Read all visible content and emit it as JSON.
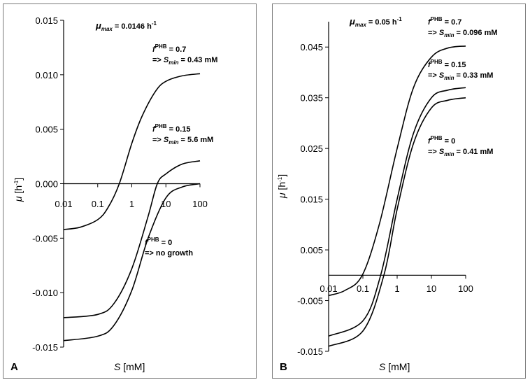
{
  "chart_data": [
    {
      "panel_label": "A",
      "type": "line",
      "xscale": "log",
      "x_ticks": [
        "0.01",
        "0.1",
        "1",
        "10",
        "100"
      ],
      "x_tick_values": [
        0.01,
        0.1,
        1,
        10,
        100
      ],
      "y_ticks": [
        "0.015",
        "0.010",
        "0.005",
        "0.000",
        "-0.005",
        "-0.010",
        "-0.015"
      ],
      "y_tick_values": [
        0.015,
        0.01,
        0.005,
        0.0,
        -0.005,
        -0.01,
        -0.015
      ],
      "ylim": [
        -0.015,
        0.015
      ],
      "xlim": [
        0.01,
        100
      ],
      "xlabel_main": "S",
      "xlabel_unit": " [mM]",
      "ylabel_main": "μ",
      "ylabel_unit": " [h",
      "ylabel_exp": "-1",
      "ylabel_close": "]",
      "title_main": "μ",
      "title_sub": "max",
      "title_rest": " = 0.0146 h",
      "title_exp": "-1",
      "series": [
        {
          "ann_f": "f",
          "ann_sup": "PHB",
          "ann_val": " = 0.7",
          "ann_line2": "=> ",
          "ann_s": "S",
          "ann_sub": "min",
          "ann_rest": " = 0.43 mM",
          "x": [
            0.01,
            0.03,
            0.1,
            0.2,
            0.43,
            1,
            2,
            5,
            10,
            30,
            100
          ],
          "y": [
            -0.0042,
            -0.004,
            -0.0033,
            -0.0022,
            0.0,
            0.0037,
            0.0062,
            0.0085,
            0.0094,
            0.0099,
            0.0101
          ]
        },
        {
          "ann_f": "f",
          "ann_sup": "PHB",
          "ann_val": " = 0.15",
          "ann_line2": "=> ",
          "ann_s": "S",
          "ann_sub": "min",
          "ann_rest": " = 5.6 mM",
          "x": [
            0.01,
            0.1,
            0.3,
            1,
            3,
            5.6,
            10,
            30,
            100
          ],
          "y": [
            -0.0123,
            -0.012,
            -0.011,
            -0.0078,
            -0.003,
            0.0,
            0.0009,
            0.0018,
            0.0021
          ]
        },
        {
          "ann_f": "f",
          "ann_sup": "PHB",
          "ann_val": " = 0",
          "ann_line2": "=> no growth",
          "ann_s": "",
          "ann_sub": "",
          "ann_rest": "",
          "x": [
            0.01,
            0.1,
            0.3,
            1,
            3,
            10,
            30,
            100
          ],
          "y": [
            -0.0144,
            -0.014,
            -0.013,
            -0.0098,
            -0.005,
            -0.0013,
            -0.0003,
            0.0
          ]
        }
      ]
    },
    {
      "panel_label": "B",
      "type": "line",
      "xscale": "log",
      "x_ticks": [
        "0.01",
        "0.1",
        "1",
        "10",
        "100"
      ],
      "x_tick_values": [
        0.01,
        0.1,
        1,
        10,
        100
      ],
      "y_ticks": [
        "0.045",
        "0.035",
        "0.025",
        "0.015",
        "0.005",
        "-0.005",
        "-0.015"
      ],
      "y_tick_values": [
        0.045,
        0.035,
        0.025,
        0.015,
        0.005,
        -0.005,
        -0.015
      ],
      "ylim": [
        -0.015,
        0.05
      ],
      "xlim": [
        0.01,
        100
      ],
      "xlabel_main": "S",
      "xlabel_unit": " [mM]",
      "ylabel_main": "μ",
      "ylabel_unit": " [h",
      "ylabel_exp": "-1",
      "ylabel_close": "]",
      "title_main": "μ",
      "title_sub": "max",
      "title_rest": " = 0.05 h",
      "title_exp": "-1",
      "series": [
        {
          "ann_f": "f",
          "ann_sup": "PHB",
          "ann_val": " = 0.7",
          "ann_line2": "=> ",
          "ann_s": "S",
          "ann_sub": "min",
          "ann_rest": " = 0.096 mM",
          "x": [
            0.01,
            0.03,
            0.096,
            0.3,
            1,
            3,
            10,
            30,
            100
          ],
          "y": [
            -0.004,
            -0.003,
            0.0,
            0.01,
            0.025,
            0.037,
            0.043,
            0.0448,
            0.0452
          ]
        },
        {
          "ann_f": "f",
          "ann_sup": "PHB",
          "ann_val": " = 0.15",
          "ann_line2": "=> ",
          "ann_s": "S",
          "ann_sub": "min",
          "ann_rest": " = 0.33 mM",
          "x": [
            0.01,
            0.1,
            0.33,
            1,
            3,
            10,
            30,
            100
          ],
          "y": [
            -0.012,
            -0.009,
            0.0,
            0.015,
            0.028,
            0.035,
            0.0365,
            0.037
          ]
        },
        {
          "ann_f": "f",
          "ann_sup": "PHB",
          "ann_val": " = 0",
          "ann_line2": "=> ",
          "ann_s": "S",
          "ann_sub": "min",
          "ann_rest": " = 0.41 mM",
          "x": [
            0.01,
            0.1,
            0.41,
            1,
            3,
            10,
            30,
            100
          ],
          "y": [
            -0.014,
            -0.011,
            0.0,
            0.013,
            0.026,
            0.033,
            0.0345,
            0.035
          ]
        }
      ]
    }
  ]
}
